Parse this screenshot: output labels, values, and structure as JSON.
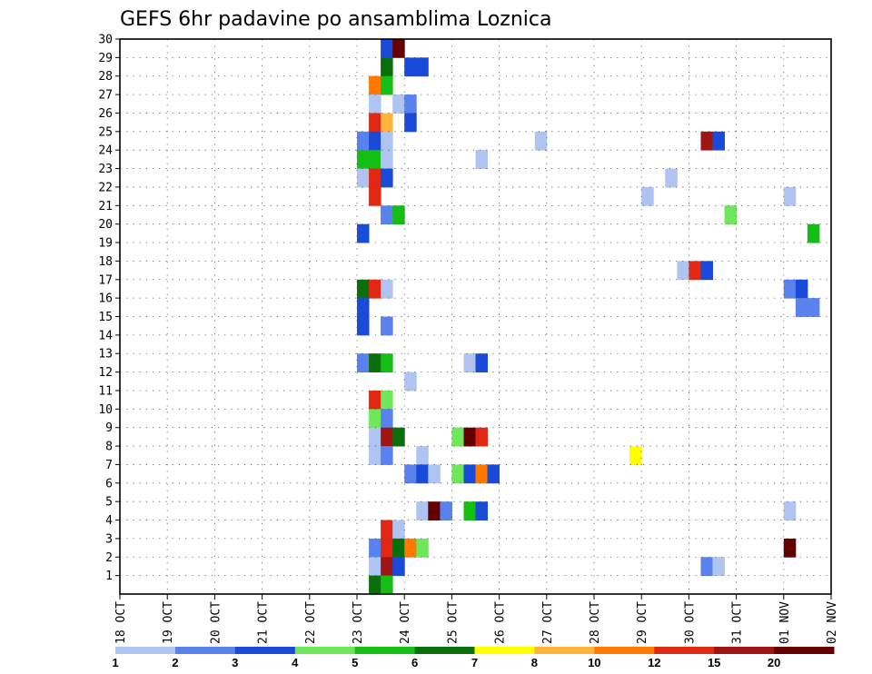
{
  "chart_data": {
    "type": "heatmap",
    "title": "GEFS 6hr padavine po ansamblima Loznica",
    "y_ticks": [
      "1",
      "2",
      "3",
      "4",
      "5",
      "6",
      "7",
      "8",
      "9",
      "10",
      "11",
      "12",
      "13",
      "14",
      "15",
      "16",
      "17",
      "18",
      "19",
      "20",
      "21",
      "22",
      "23",
      "24",
      "25",
      "26",
      "27",
      "28",
      "29",
      "30"
    ],
    "x_ticks": [
      "18 OCT",
      "19 OCT",
      "20 OCT",
      "21 OCT",
      "22 OCT",
      "23 OCT",
      "24 OCT",
      "25 OCT",
      "26 OCT",
      "27 OCT",
      "28 OCT",
      "29 OCT",
      "30 OCT",
      "31 OCT",
      "01 NOV",
      "02 NOV"
    ],
    "x_range_days": [
      0,
      15
    ],
    "y_range_members": [
      0,
      30
    ],
    "grid": true,
    "legend": {
      "position": "bottom",
      "labels": [
        "1",
        "2",
        "3",
        "4",
        "5",
        "6",
        "7",
        "8",
        "10",
        "12",
        "15",
        "20"
      ],
      "colors": [
        "#b0c4f2",
        "#5a82ee",
        "#1a4ad8",
        "#6ee85a",
        "#14be14",
        "#0a6e0a",
        "#ffff00",
        "#ffb43c",
        "#ff7800",
        "#e12814",
        "#a01414",
        "#640000"
      ]
    },
    "cells": [
      {
        "member": 30,
        "t": 21,
        "v": 1
      },
      {
        "member": 30,
        "t": 22,
        "v": 10
      },
      {
        "member": 30,
        "t": 23,
        "v": 12
      },
      {
        "member": 30,
        "t": 44,
        "v": 1
      },
      {
        "member": 30,
        "t": 45,
        "v": 2
      },
      {
        "member": 29,
        "t": 22,
        "v": 3
      },
      {
        "member": 29,
        "t": 23,
        "v": 20
      },
      {
        "member": 28,
        "t": 22,
        "v": 6
      },
      {
        "member": 28,
        "t": 24,
        "v": 3
      },
      {
        "member": 28,
        "t": 25,
        "v": 3
      },
      {
        "member": 27,
        "t": 21,
        "v": 10
      },
      {
        "member": 27,
        "t": 22,
        "v": 5
      },
      {
        "member": 26,
        "t": 21,
        "v": 1
      },
      {
        "member": 26,
        "t": 23,
        "v": 1
      },
      {
        "member": 26,
        "t": 24,
        "v": 2
      },
      {
        "member": 25,
        "t": 21,
        "v": 12
      },
      {
        "member": 25,
        "t": 22,
        "v": 8
      },
      {
        "member": 25,
        "t": 24,
        "v": 3
      },
      {
        "member": 24,
        "t": 20,
        "v": 2
      },
      {
        "member": 24,
        "t": 21,
        "v": 3
      },
      {
        "member": 24,
        "t": 22,
        "v": 1
      },
      {
        "member": 24,
        "t": 35,
        "v": 1
      },
      {
        "member": 24,
        "t": 49,
        "v": 15
      },
      {
        "member": 24,
        "t": 50,
        "v": 3
      },
      {
        "member": 23,
        "t": 20,
        "v": 5
      },
      {
        "member": 23,
        "t": 21,
        "v": 5
      },
      {
        "member": 23,
        "t": 22,
        "v": 1
      },
      {
        "member": 23,
        "t": 30,
        "v": 1
      },
      {
        "member": 22,
        "t": 20,
        "v": 1
      },
      {
        "member": 22,
        "t": 21,
        "v": 12
      },
      {
        "member": 22,
        "t": 22,
        "v": 3
      },
      {
        "member": 22,
        "t": 46,
        "v": 1
      },
      {
        "member": 21,
        "t": 21,
        "v": 12
      },
      {
        "member": 21,
        "t": 44,
        "v": 1
      },
      {
        "member": 21,
        "t": 56,
        "v": 1
      },
      {
        "member": 20,
        "t": 22,
        "v": 2
      },
      {
        "member": 20,
        "t": 23,
        "v": 5
      },
      {
        "member": 20,
        "t": 51,
        "v": 4
      },
      {
        "member": 19,
        "t": 20,
        "v": 3
      },
      {
        "member": 19,
        "t": 58,
        "v": 5
      },
      {
        "member": 19,
        "t": 60,
        "v": 7
      },
      {
        "member": 17,
        "t": 47,
        "v": 1
      },
      {
        "member": 17,
        "t": 48,
        "v": 12
      },
      {
        "member": 17,
        "t": 49,
        "v": 3
      },
      {
        "member": 16,
        "t": 20,
        "v": 6
      },
      {
        "member": 16,
        "t": 21,
        "v": 12
      },
      {
        "member": 16,
        "t": 22,
        "v": 1
      },
      {
        "member": 16,
        "t": 56,
        "v": 2
      },
      {
        "member": 16,
        "t": 57,
        "v": 3
      },
      {
        "member": 15,
        "t": 20,
        "v": 3
      },
      {
        "member": 15,
        "t": 57,
        "v": 2
      },
      {
        "member": 15,
        "t": 58,
        "v": 2
      },
      {
        "member": 14,
        "t": 20,
        "v": 3
      },
      {
        "member": 14,
        "t": 22,
        "v": 2
      },
      {
        "member": 12,
        "t": 20,
        "v": 2
      },
      {
        "member": 12,
        "t": 21,
        "v": 6
      },
      {
        "member": 12,
        "t": 22,
        "v": 5
      },
      {
        "member": 12,
        "t": 29,
        "v": 1
      },
      {
        "member": 12,
        "t": 30,
        "v": 3
      },
      {
        "member": 11,
        "t": 24,
        "v": 1
      },
      {
        "member": 10,
        "t": 21,
        "v": 12
      },
      {
        "member": 10,
        "t": 22,
        "v": 4
      },
      {
        "member": 9,
        "t": 21,
        "v": 4
      },
      {
        "member": 9,
        "t": 22,
        "v": 2
      },
      {
        "member": 8,
        "t": 21,
        "v": 1
      },
      {
        "member": 8,
        "t": 22,
        "v": 15
      },
      {
        "member": 8,
        "t": 23,
        "v": 6
      },
      {
        "member": 8,
        "t": 28,
        "v": 4
      },
      {
        "member": 8,
        "t": 29,
        "v": 20
      },
      {
        "member": 8,
        "t": 30,
        "v": 12
      },
      {
        "member": 7,
        "t": 21,
        "v": 1
      },
      {
        "member": 7,
        "t": 22,
        "v": 2
      },
      {
        "member": 7,
        "t": 25,
        "v": 1
      },
      {
        "member": 7,
        "t": 43,
        "v": 7
      },
      {
        "member": 6,
        "t": 24,
        "v": 2
      },
      {
        "member": 6,
        "t": 25,
        "v": 3
      },
      {
        "member": 6,
        "t": 26,
        "v": 1
      },
      {
        "member": 6,
        "t": 28,
        "v": 4
      },
      {
        "member": 6,
        "t": 29,
        "v": 3
      },
      {
        "member": 6,
        "t": 30,
        "v": 10
      },
      {
        "member": 6,
        "t": 31,
        "v": 3
      },
      {
        "member": 4,
        "t": 25,
        "v": 1
      },
      {
        "member": 4,
        "t": 26,
        "v": 20
      },
      {
        "member": 4,
        "t": 27,
        "v": 2
      },
      {
        "member": 4,
        "t": 29,
        "v": 5
      },
      {
        "member": 4,
        "t": 30,
        "v": 3
      },
      {
        "member": 4,
        "t": 56,
        "v": 1
      },
      {
        "member": 3,
        "t": 22,
        "v": 12
      },
      {
        "member": 3,
        "t": 23,
        "v": 1
      },
      {
        "member": 2,
        "t": 21,
        "v": 2
      },
      {
        "member": 2,
        "t": 22,
        "v": 12
      },
      {
        "member": 2,
        "t": 23,
        "v": 6
      },
      {
        "member": 2,
        "t": 24,
        "v": 10
      },
      {
        "member": 2,
        "t": 25,
        "v": 4
      },
      {
        "member": 2,
        "t": 56,
        "v": 20
      },
      {
        "member": 1,
        "t": 21,
        "v": 1
      },
      {
        "member": 1,
        "t": 22,
        "v": 15
      },
      {
        "member": 1,
        "t": 23,
        "v": 3
      },
      {
        "member": 1,
        "t": 49,
        "v": 2
      },
      {
        "member": 1,
        "t": 50,
        "v": 1
      },
      {
        "member": 0,
        "t": 21,
        "v": 6
      },
      {
        "member": 0,
        "t": 22,
        "v": 5
      }
    ]
  }
}
